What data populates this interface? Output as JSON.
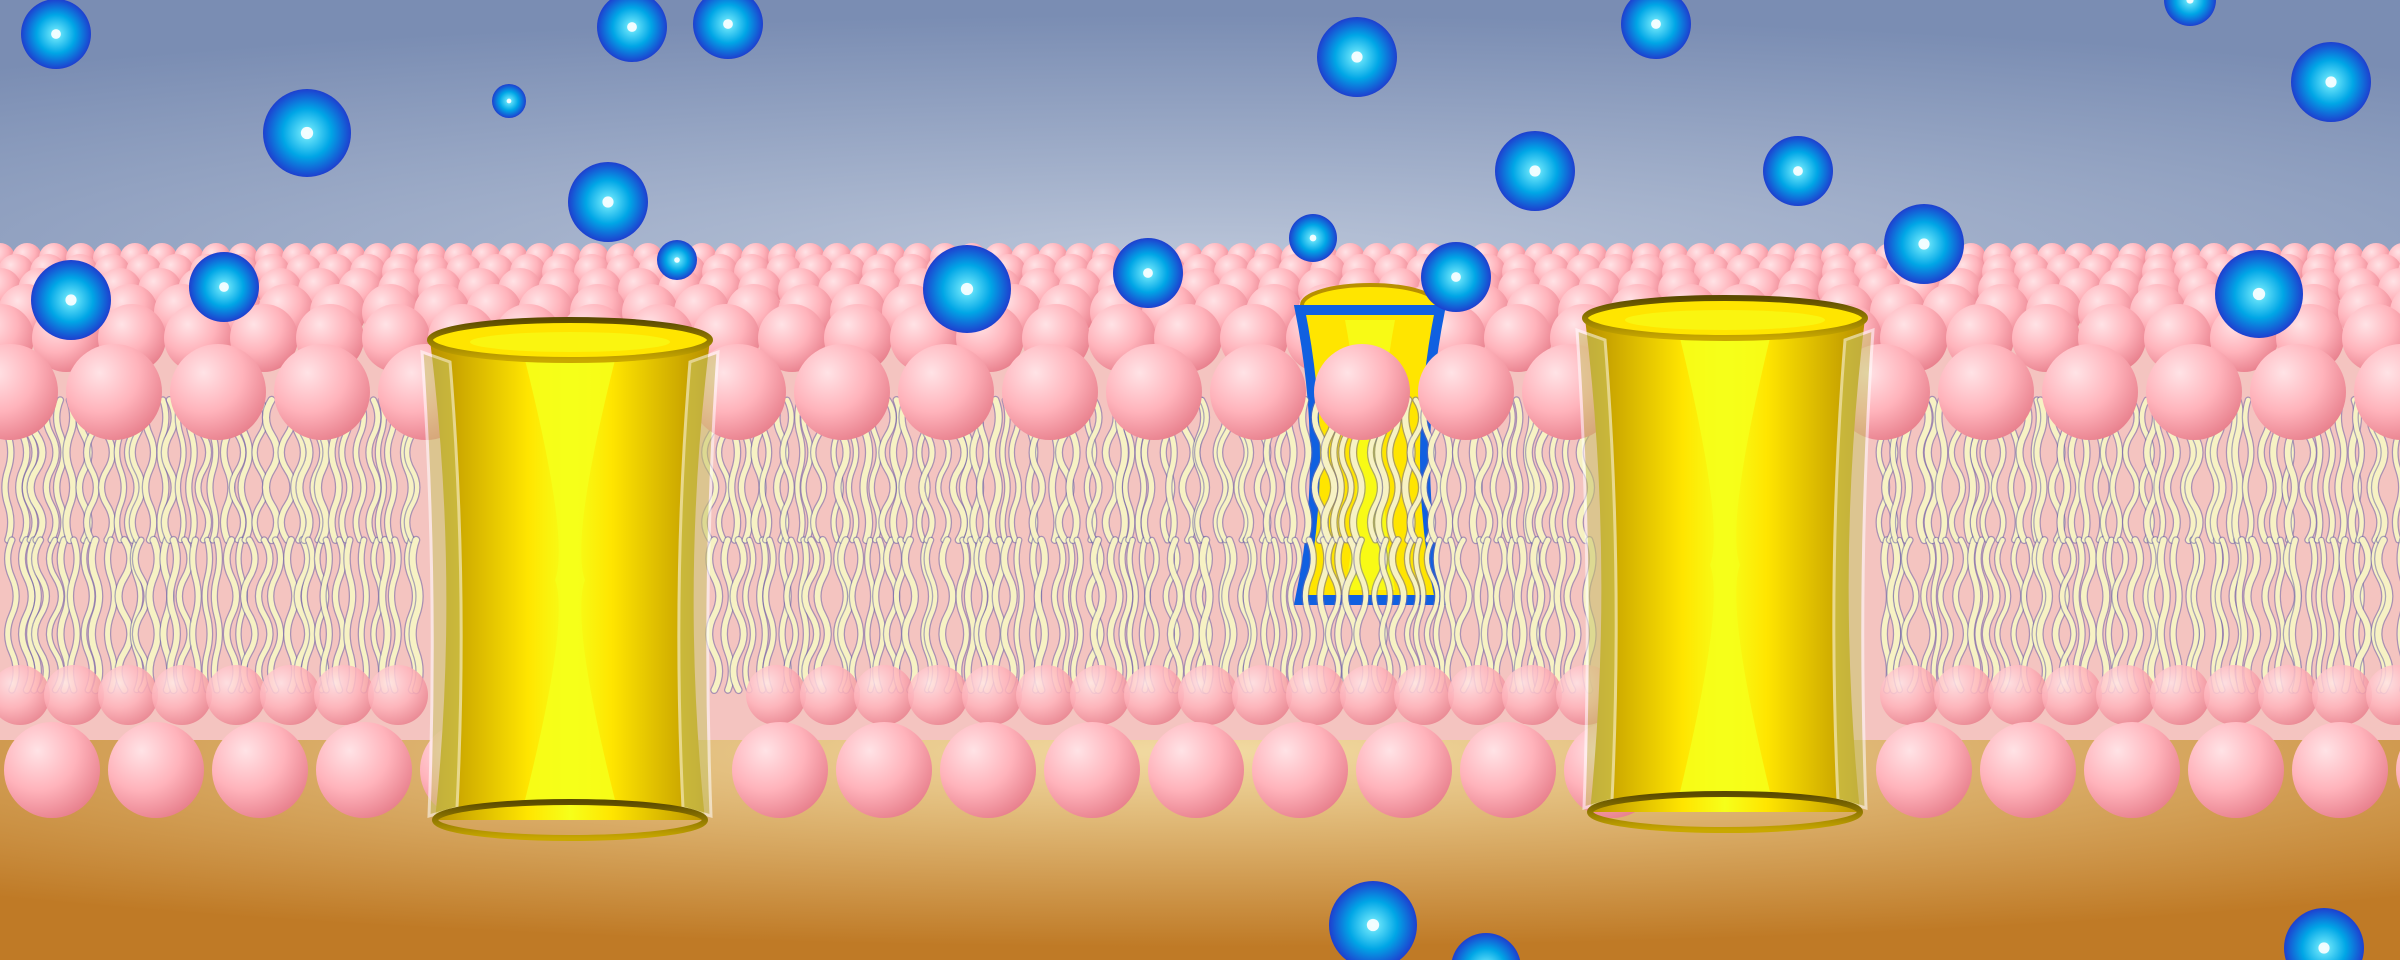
{
  "scene": {
    "subject": "lipid-bilayer-cell-membrane",
    "colors": {
      "extracellular_center": "#b9c4d8",
      "extracellular_edge": "#7a8db3",
      "intracellular_center": "#f2dba3",
      "intracellular_edge": "#bf7a26",
      "lipid_head_light": "#ffe3e6",
      "lipid_head": "#ffb3bb",
      "lipid_head_dark": "#e8808d",
      "tail": "#f7f2c4",
      "tail_outline": "#6b66a8",
      "channel_light": "#f6ff1a",
      "channel": "#ffe500",
      "channel_dark": "#b89000",
      "ion_light": "#7ff2ff",
      "ion": "#00a6e6",
      "ion_dark": "#1e3fcf"
    }
  }
}
